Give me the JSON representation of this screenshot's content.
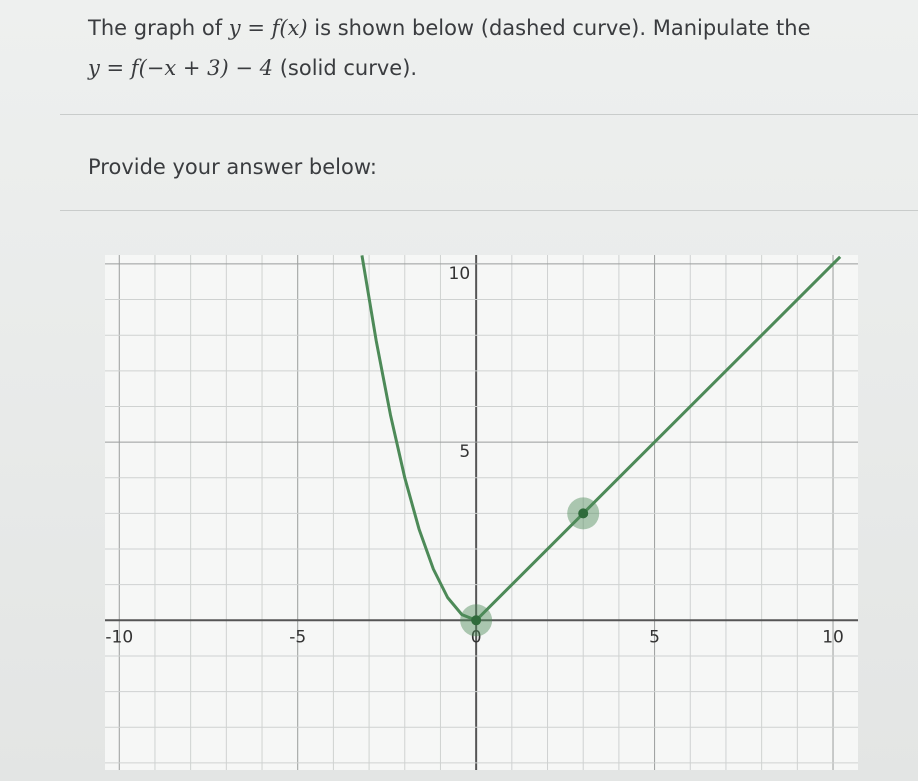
{
  "question": {
    "line1": [
      "The graph of ",
      "y = f(x)",
      " is shown below (dashed curve). Manipulate the"
    ],
    "line2": [
      "y = f(−x + 3) − 4",
      " (solid curve)."
    ]
  },
  "prompt": "Provide your answer below:",
  "graph": {
    "type": "line",
    "xlim": [
      -10.4,
      10.7
    ],
    "ylim": [
      -4.2,
      10.25
    ],
    "xticks": [
      -10,
      -5,
      0,
      5,
      10
    ],
    "yticks": [
      5,
      10
    ],
    "xgrid": [
      -10,
      -9,
      -8,
      -7,
      -6,
      -5,
      -4,
      -3,
      -2,
      -1,
      0,
      1,
      2,
      3,
      4,
      5,
      6,
      7,
      8,
      9,
      10
    ],
    "ygrid": [
      -4,
      -3,
      -2,
      -1,
      0,
      1,
      2,
      3,
      4,
      5,
      6,
      7,
      8,
      9,
      10
    ],
    "curve": {
      "color": "#4d8a58",
      "x": [
        -3.2,
        -2.8,
        -2.4,
        -2,
        -1.6,
        -1.2,
        -0.8,
        -0.4,
        0,
        3,
        10.2
      ],
      "y": [
        10.24,
        7.84,
        5.76,
        4,
        2.56,
        1.44,
        0.64,
        0.16,
        0,
        3,
        10.2
      ]
    },
    "handles": {
      "x": [
        0,
        3
      ],
      "y": [
        0,
        3
      ]
    }
  }
}
